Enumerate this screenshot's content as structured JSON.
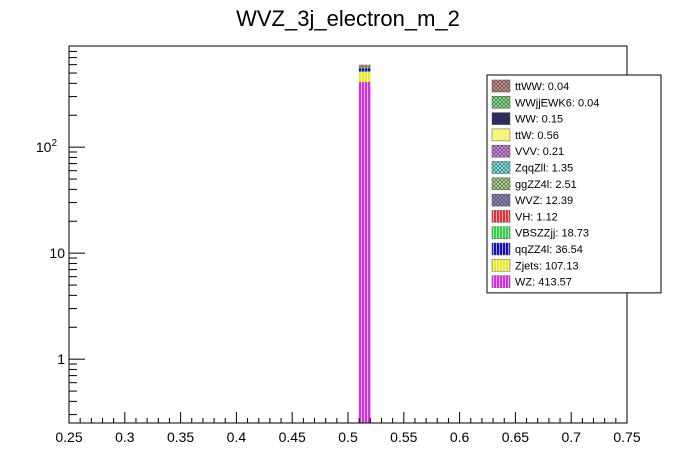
{
  "chart_data": {
    "type": "bar",
    "title": "WVZ_3j_electron_m_2",
    "xlabel": "",
    "ylabel": "",
    "xlim": [
      0.25,
      0.75
    ],
    "ylim": [
      0.25,
      900
    ],
    "yscale": "log",
    "bin": [
      0.51,
      0.52
    ],
    "x_ticks": [
      {
        "value": 0.25,
        "label": "0.25"
      },
      {
        "value": 0.3,
        "label": "0.3"
      },
      {
        "value": 0.35,
        "label": "0.35"
      },
      {
        "value": 0.4,
        "label": "0.4"
      },
      {
        "value": 0.45,
        "label": "0.45"
      },
      {
        "value": 0.5,
        "label": "0.5"
      },
      {
        "value": 0.55,
        "label": "0.55"
      },
      {
        "value": 0.6,
        "label": "0.6"
      },
      {
        "value": 0.65,
        "label": "0.65"
      },
      {
        "value": 0.7,
        "label": "0.7"
      },
      {
        "value": 0.75,
        "label": "0.75"
      }
    ],
    "y_ticks": [
      {
        "value": 1,
        "label": "1",
        "sup": ""
      },
      {
        "value": 10,
        "label": "10",
        "sup": ""
      },
      {
        "value": 100,
        "label": "10",
        "sup": "2"
      }
    ],
    "legend_position": "top-right",
    "series": [
      {
        "name": "ttWW",
        "value": 0.04,
        "label": "ttWW: 0.04",
        "color": "#c48a8a",
        "pattern": "cross"
      },
      {
        "name": "WWjjEWK6",
        "value": 0.04,
        "label": "WWjjEWK6: 0.04",
        "color": "#7ddc84",
        "pattern": "cross"
      },
      {
        "name": "WW",
        "value": 0.15,
        "label": "WW: 0.15",
        "color": "#2b2b6b",
        "pattern": "cross"
      },
      {
        "name": "ttW",
        "value": 0.56,
        "label": "ttW: 0.56",
        "color": "#f5f57a",
        "pattern": "solid"
      },
      {
        "name": "VVV",
        "value": 0.21,
        "label": "VVV: 0.21",
        "color": "#cc80e0",
        "pattern": "cross"
      },
      {
        "name": "ZqqZll",
        "value": 1.35,
        "label": "ZqqZll: 1.35",
        "color": "#7ae0e0",
        "pattern": "cross"
      },
      {
        "name": "ggZZ4l",
        "value": 2.51,
        "label": "ggZZ4l: 2.51",
        "color": "#a8d08a",
        "pattern": "cross"
      },
      {
        "name": "WVZ",
        "value": 12.39,
        "label": "WVZ: 12.39",
        "color": "#8c82b4",
        "pattern": "cross"
      },
      {
        "name": "VH",
        "value": 1.12,
        "label": "VH: 1.12",
        "color": "#e0303a",
        "pattern": "vertical"
      },
      {
        "name": "VBSZZjj",
        "value": 18.73,
        "label": "VBSZZjj: 18.73",
        "color": "#30d040",
        "pattern": "vertical"
      },
      {
        "name": "qqZZ4l",
        "value": 36.54,
        "label": "qqZZ4l: 36.54",
        "color": "#1010b0",
        "pattern": "vertical"
      },
      {
        "name": "Zjets",
        "value": 107.13,
        "label": "Zjets: 107.13",
        "color": "#e8e830",
        "pattern": "vertical"
      },
      {
        "name": "WZ",
        "value": 413.57,
        "label": "WZ: 413.57",
        "color": "#d030e0",
        "pattern": "vertical"
      }
    ]
  }
}
